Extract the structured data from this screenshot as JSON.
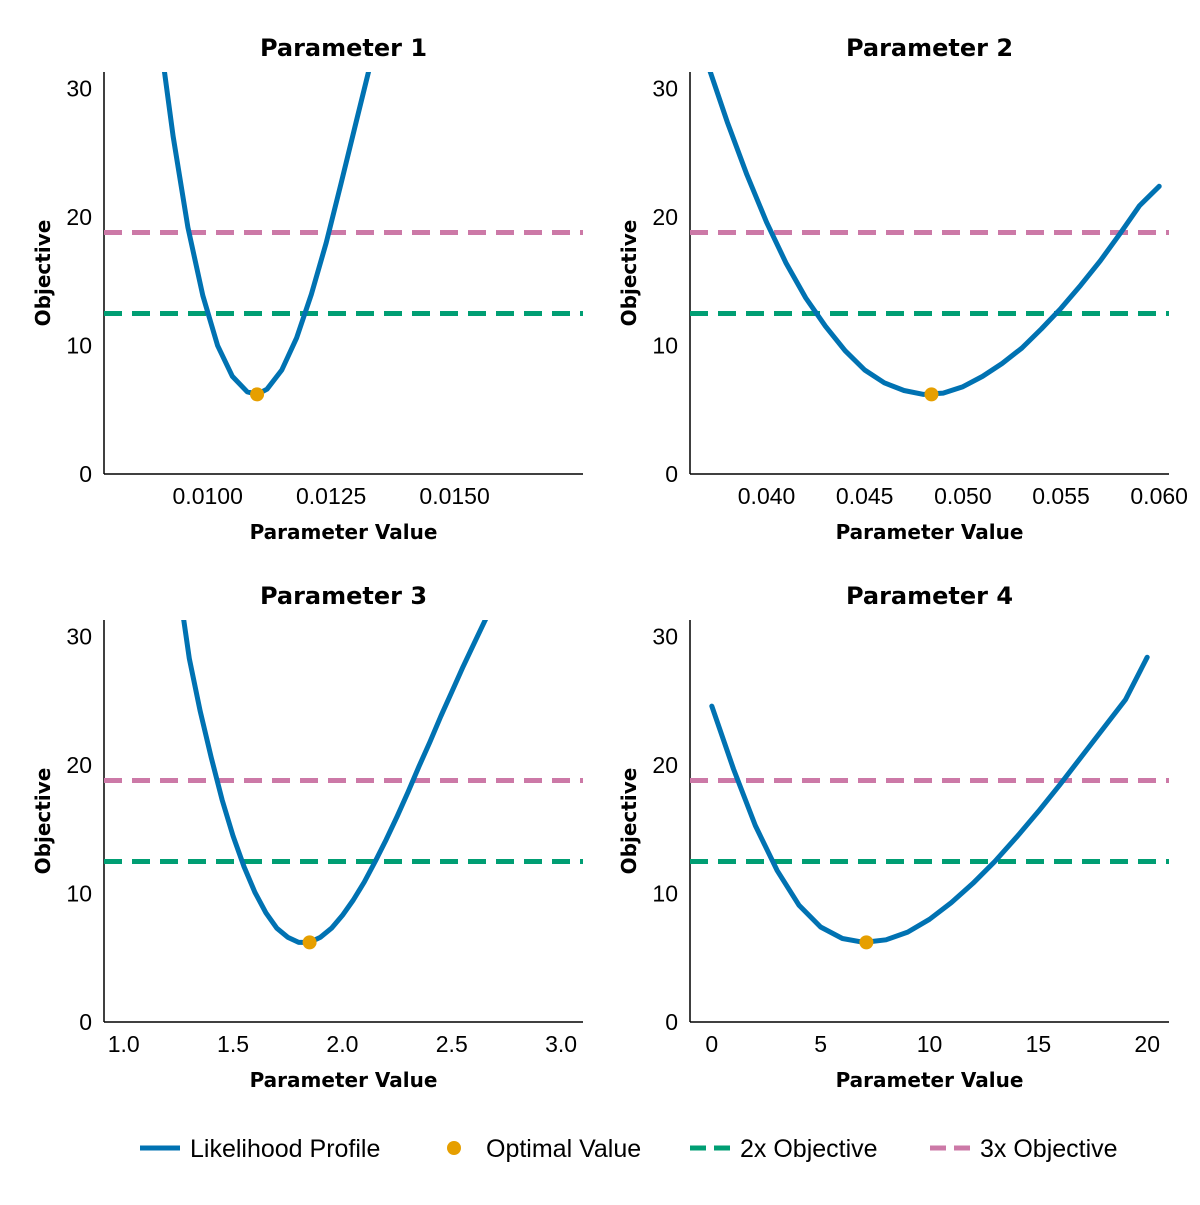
{
  "colors": {
    "profile": "#0072B2",
    "optimal": "#E69F00",
    "two_x": "#009E73",
    "three_x": "#CC79A7"
  },
  "legend": {
    "items": [
      {
        "key": "profile",
        "label": "Likelihood Profile",
        "style": "line"
      },
      {
        "key": "optimal",
        "label": "Optimal Value",
        "style": "dot"
      },
      {
        "key": "two_x",
        "label": "2x Objective",
        "style": "dash"
      },
      {
        "key": "three_x",
        "label": "3x Objective",
        "style": "dash"
      }
    ]
  },
  "chart_data": [
    {
      "type": "line",
      "title": "Parameter 1",
      "xlabel": "Parameter Value",
      "ylabel": "Objective",
      "xlim": [
        0.0079,
        0.0176
      ],
      "ylim": [
        0,
        31.3
      ],
      "xticks": [
        0.01,
        0.0125,
        0.015
      ],
      "xtick_labels": [
        "0.0100",
        "0.0125",
        "0.0150"
      ],
      "yticks": [
        0,
        10,
        20,
        30
      ],
      "ytick_labels": [
        "0",
        "10",
        "20",
        "30"
      ],
      "series": {
        "x": [
          0.009,
          0.0093,
          0.0096,
          0.0099,
          0.0102,
          0.0105,
          0.0108,
          0.011,
          0.0112,
          0.0115,
          0.0118,
          0.0121,
          0.0124,
          0.0127,
          0.013,
          0.0133,
          0.0136
        ],
        "y": [
          34.9,
          26.3,
          19.2,
          13.9,
          10.0,
          7.6,
          6.4,
          6.2,
          6.6,
          8.1,
          10.6,
          14.0,
          18.0,
          22.6,
          27.3,
          32.0,
          36.0
        ]
      },
      "optimal": {
        "x": 0.011,
        "y": 6.2
      },
      "two_x": 12.5,
      "three_x": 18.8
    },
    {
      "type": "line",
      "title": "Parameter 2",
      "xlabel": "Parameter Value",
      "ylabel": "Objective",
      "xlim": [
        0.0361,
        0.0605
      ],
      "ylim": [
        0,
        31.3
      ],
      "xticks": [
        0.04,
        0.045,
        0.05,
        0.055,
        0.06
      ],
      "xtick_labels": [
        "0.040",
        "0.045",
        "0.050",
        "0.055",
        "0.060"
      ],
      "yticks": [
        0,
        10,
        20,
        30
      ],
      "ytick_labels": [
        "0",
        "10",
        "20",
        "30"
      ],
      "series": {
        "x": [
          0.037,
          0.038,
          0.039,
          0.04,
          0.041,
          0.042,
          0.043,
          0.044,
          0.045,
          0.046,
          0.047,
          0.048,
          0.049,
          0.05,
          0.051,
          0.052,
          0.053,
          0.054,
          0.055,
          0.056,
          0.057,
          0.058,
          0.059,
          0.06
        ],
        "y": [
          31.9,
          27.4,
          23.3,
          19.6,
          16.4,
          13.7,
          11.5,
          9.6,
          8.1,
          7.1,
          6.5,
          6.2,
          6.3,
          6.8,
          7.6,
          8.6,
          9.8,
          11.3,
          12.9,
          14.7,
          16.6,
          18.7,
          20.9,
          22.4
        ]
      },
      "optimal": {
        "x": 0.0484,
        "y": 6.2
      },
      "two_x": 12.5,
      "three_x": 18.8
    },
    {
      "type": "line",
      "title": "Parameter 3",
      "xlabel": "Parameter Value",
      "ylabel": "Objective",
      "xlim": [
        0.91,
        3.1
      ],
      "ylim": [
        0,
        31.3
      ],
      "xticks": [
        1.0,
        1.5,
        2.0,
        2.5,
        3.0
      ],
      "xtick_labels": [
        "1.0",
        "1.5",
        "2.0",
        "2.5",
        "3.0"
      ],
      "yticks": [
        0,
        10,
        20,
        30
      ],
      "ytick_labels": [
        "0",
        "10",
        "20",
        "30"
      ],
      "series": {
        "x": [
          1.26,
          1.3,
          1.35,
          1.4,
          1.45,
          1.5,
          1.55,
          1.6,
          1.65,
          1.7,
          1.75,
          1.8,
          1.85,
          1.9,
          1.95,
          2.0,
          2.05,
          2.1,
          2.15,
          2.2,
          2.25,
          2.3,
          2.35,
          2.4,
          2.45,
          2.5,
          2.55,
          2.6,
          2.65,
          2.7
        ],
        "y": [
          33.0,
          28.3,
          24.2,
          20.6,
          17.3,
          14.5,
          12.1,
          10.1,
          8.5,
          7.3,
          6.6,
          6.2,
          6.2,
          6.6,
          7.3,
          8.3,
          9.5,
          10.9,
          12.5,
          14.2,
          16.0,
          17.9,
          19.9,
          21.8,
          23.8,
          25.7,
          27.6,
          29.4,
          31.2,
          32.9
        ]
      },
      "optimal": {
        "x": 1.85,
        "y": 6.2
      },
      "two_x": 12.5,
      "three_x": 18.8
    },
    {
      "type": "line",
      "title": "Parameter 4",
      "xlabel": "Parameter Value",
      "ylabel": "Objective",
      "xlim": [
        -1.0,
        21.0
      ],
      "ylim": [
        0,
        31.3
      ],
      "xticks": [
        0,
        5,
        10,
        15,
        20
      ],
      "xtick_labels": [
        "0",
        "5",
        "10",
        "15",
        "20"
      ],
      "yticks": [
        0,
        10,
        20,
        30
      ],
      "ytick_labels": [
        "0",
        "10",
        "20",
        "30"
      ],
      "series": {
        "x": [
          0,
          1,
          2,
          3,
          4,
          5,
          6,
          7,
          8,
          9,
          10,
          11,
          12,
          13,
          14,
          15,
          16,
          17,
          18,
          19,
          20
        ],
        "y": [
          24.6,
          19.7,
          15.3,
          11.8,
          9.1,
          7.4,
          6.5,
          6.2,
          6.4,
          7.0,
          8.0,
          9.3,
          10.8,
          12.5,
          14.4,
          16.4,
          18.5,
          20.7,
          22.9,
          25.1,
          28.4
        ]
      },
      "optimal": {
        "x": 7.1,
        "y": 6.2
      },
      "two_x": 12.5,
      "three_x": 18.8
    }
  ]
}
